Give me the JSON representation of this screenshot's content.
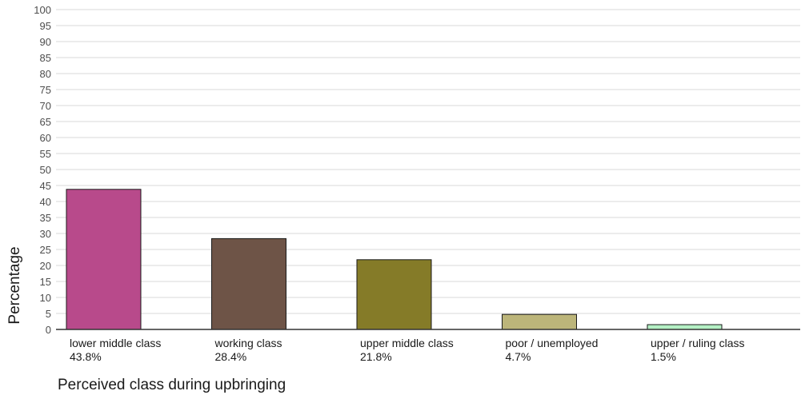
{
  "chart_data": {
    "type": "bar",
    "xlabel": "Perceived class during upbringing",
    "ylabel": "Percentage",
    "ylim": [
      0,
      100
    ],
    "yticks": [
      0,
      5,
      10,
      15,
      20,
      25,
      30,
      35,
      40,
      45,
      50,
      55,
      60,
      65,
      70,
      75,
      80,
      85,
      90,
      95,
      100
    ],
    "grid": true,
    "categories": [
      "lower middle class",
      "working class",
      "upper middle class",
      "poor / unemployed",
      "upper / ruling class"
    ],
    "values": [
      43.8,
      28.4,
      21.8,
      4.7,
      1.5
    ],
    "value_labels": [
      "43.8%",
      "28.4%",
      "21.8%",
      "4.7%",
      "1.5%"
    ],
    "colors": [
      "#b84a8b",
      "#6e5447",
      "#857b28",
      "#bcb57a",
      "#b4f0c4"
    ]
  }
}
